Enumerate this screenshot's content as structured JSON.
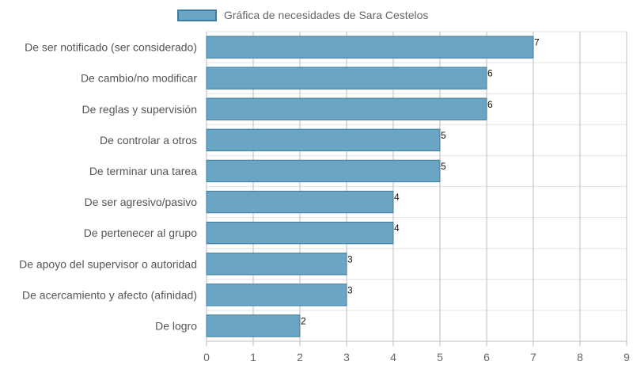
{
  "chart_data": {
    "type": "bar",
    "orientation": "horizontal",
    "categories": [
      "De ser notificado (ser considerado)",
      "De cambio/no modificar",
      "De reglas y supervisión",
      "De controlar a otros",
      "De terminar una tarea",
      "De ser agresivo/pasivo",
      "De pertenecer al grupo",
      "De apoyo del supervisor o autoridad",
      "De acercamiento y afecto (afinidad)",
      "De logro"
    ],
    "series": [
      {
        "name": "Gráfica de necesidades de Sara Cestelos",
        "values": [
          7,
          6,
          6,
          5,
          5,
          4,
          4,
          3,
          3,
          2
        ]
      }
    ],
    "xlim": [
      0,
      9
    ],
    "xticks": [
      0,
      1,
      2,
      3,
      4,
      5,
      6,
      7,
      8,
      9
    ],
    "grid": true,
    "legend_position": "top",
    "colors": {
      "bar_fill": "#6aa5c4",
      "bar_border": "#3c7ca0"
    },
    "data_labels": true
  }
}
